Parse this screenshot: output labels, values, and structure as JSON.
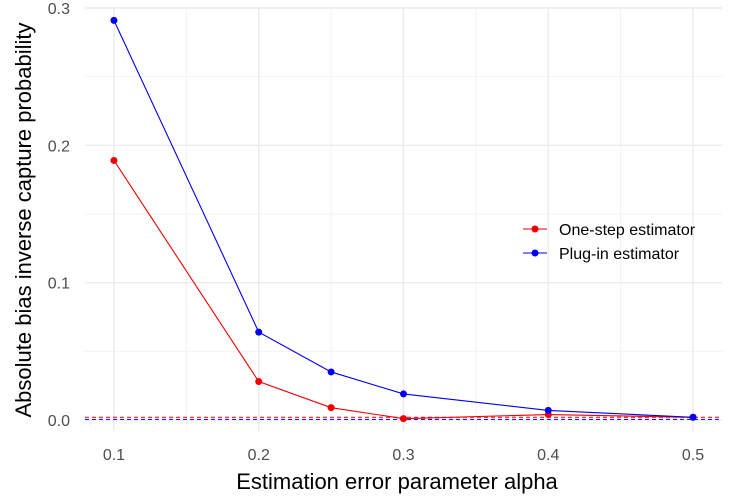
{
  "chart_data": {
    "type": "line",
    "title": "",
    "xlabel": "Estimation error parameter alpha",
    "ylabel": "Absolute bias inverse capture probability",
    "x": [
      0.1,
      0.2,
      0.25,
      0.3,
      0.4,
      0.5
    ],
    "xlim": [
      0.08,
      0.52
    ],
    "ylim": [
      -0.008,
      0.3
    ],
    "x_ticks": [
      "0.1",
      "0.2",
      "0.3",
      "0.4",
      "0.5"
    ],
    "x_tick_values": [
      0.1,
      0.2,
      0.3,
      0.4,
      0.5
    ],
    "y_ticks": [
      "0.0",
      "0.1",
      "0.2",
      "0.3"
    ],
    "y_tick_values": [
      0.0,
      0.1,
      0.2,
      0.3
    ],
    "grid": true,
    "legend_position": "right",
    "series": [
      {
        "name": "One-step estimator",
        "color": "#ee0000",
        "values": [
          0.189,
          0.028,
          0.009,
          0.001,
          0.004,
          0.002
        ],
        "reference_line": 0.002
      },
      {
        "name": "Plug-in estimator",
        "color": "#0000ee",
        "values": [
          0.291,
          0.064,
          0.035,
          0.019,
          0.007,
          0.002
        ],
        "reference_line": 0.0005
      }
    ]
  }
}
